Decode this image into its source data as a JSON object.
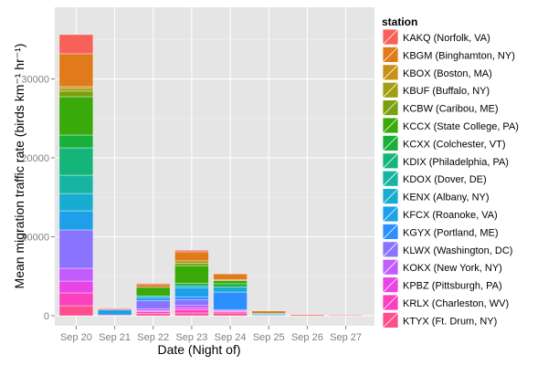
{
  "chart_data": {
    "type": "bar",
    "stacked": true,
    "title": "",
    "xlabel": "Date (Night of)",
    "ylabel": "Mean migration traffic rate (birds km⁻¹ hr⁻¹)",
    "ylim": [
      0,
      37500
    ],
    "yticks": [
      0,
      10000,
      20000,
      30000
    ],
    "ytick_labels": [
      "0",
      "10000",
      "20000",
      "30000"
    ],
    "categories": [
      "Sep 20",
      "Sep 21",
      "Sep 22",
      "Sep 23",
      "Sep 24",
      "Sep 25",
      "Sep 26",
      "Sep 27"
    ],
    "legend_title": "station",
    "legend_position": "right",
    "series": [
      {
        "name": "KAKQ (Norfolk, VA)",
        "color": "#F8605A",
        "values": [
          2430,
          150,
          150,
          200,
          0,
          0,
          150,
          100
        ]
      },
      {
        "name": "KBGM (Binghamton, NY)",
        "color": "#E07A1A",
        "values": [
          4160,
          0,
          350,
          1150,
          750,
          300,
          0,
          0
        ]
      },
      {
        "name": "KBOX (Boston, MA)",
        "color": "#C99015",
        "values": [
          230,
          0,
          0,
          0,
          0,
          0,
          0,
          0
        ]
      },
      {
        "name": "KBUF (Buffalo, NY)",
        "color": "#A39D12",
        "values": [
          350,
          0,
          0,
          300,
          100,
          0,
          0,
          0
        ]
      },
      {
        "name": "KCBW (Caribou, ME)",
        "color": "#7BA00E",
        "values": [
          700,
          0,
          0,
          300,
          0,
          0,
          0,
          0
        ]
      },
      {
        "name": "KCCX (State College, PA)",
        "color": "#3AAA0A",
        "values": [
          4860,
          0,
          1100,
          2250,
          400,
          0,
          0,
          0
        ]
      },
      {
        "name": "KCXX (Colchester, VT)",
        "color": "#1AAE3A",
        "values": [
          1620,
          0,
          0,
          300,
          400,
          0,
          0,
          0
        ]
      },
      {
        "name": "KDIX (Philadelphia, PA)",
        "color": "#15B57A",
        "values": [
          3470,
          0,
          0,
          0,
          0,
          0,
          0,
          0
        ]
      },
      {
        "name": "KDOX (Dover, DE)",
        "color": "#17B4A2",
        "values": [
          2310,
          0,
          0,
          0,
          0,
          100,
          0,
          0
        ]
      },
      {
        "name": "KENX (Albany, NY)",
        "color": "#16ADD0",
        "values": [
          2200,
          0,
          200,
          300,
          650,
          100,
          0,
          0
        ]
      },
      {
        "name": "KFCX (Roanoke, VA)",
        "color": "#1E9FEA",
        "values": [
          2420,
          650,
          400,
          1100,
          0,
          0,
          0,
          0
        ]
      },
      {
        "name": "KGYX (Portland, ME)",
        "color": "#2C8FFF",
        "values": [
          0,
          0,
          0,
          400,
          2250,
          100,
          0,
          0
        ]
      },
      {
        "name": "KLWX (Washington, DC)",
        "color": "#8A74FF",
        "values": [
          4860,
          0,
          1050,
          700,
          0,
          0,
          0,
          0
        ]
      },
      {
        "name": "KOKX (New York, NY)",
        "color": "#C25CFF",
        "values": [
          1620,
          0,
          200,
          300,
          150,
          0,
          0,
          0
        ]
      },
      {
        "name": "KPBZ (Pittsburgh, PA)",
        "color": "#E845E8",
        "values": [
          1500,
          0,
          150,
          250,
          100,
          0,
          0,
          0
        ]
      },
      {
        "name": "KRLX (Charleston, WV)",
        "color": "#FB40C0",
        "values": [
          1620,
          0,
          200,
          400,
          150,
          0,
          0,
          0
        ]
      },
      {
        "name": "KTYX (Ft. Drum, NY)",
        "color": "#FF4E8E",
        "values": [
          1270,
          100,
          300,
          350,
          350,
          0,
          0,
          0
        ]
      }
    ]
  }
}
